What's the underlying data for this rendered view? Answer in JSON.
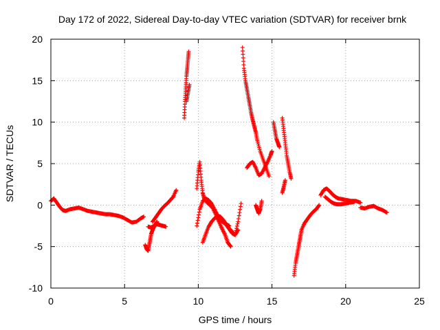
{
  "chart_data": {
    "type": "scatter",
    "title": "Day 172 of 2022, Sidereal Day-to-day VTEC variation (SDTVAR) for receiver brnk",
    "xlabel": "GPS time / hours",
    "ylabel": "SDTVAR / TECUs",
    "xlim": [
      0,
      25
    ],
    "ylim": [
      -10,
      20
    ],
    "xticks": [
      0,
      5,
      10,
      15,
      20,
      25
    ],
    "yticks": [
      -10,
      -5,
      0,
      5,
      10,
      15,
      20
    ],
    "grid": true,
    "marker": "+",
    "color": "#ff0000",
    "series": [
      {
        "name": "SDTVAR",
        "segments": [
          {
            "x": [
              0.0,
              0.2,
              0.4,
              0.6,
              0.8,
              1.0,
              1.3,
              1.6,
              1.9,
              2.2,
              2.5,
              2.8,
              3.1,
              3.4,
              3.7,
              4.0,
              4.3,
              4.6,
              4.9,
              5.2,
              5.5,
              5.8,
              6.1,
              6.3
            ],
            "y": [
              0.5,
              0.8,
              0.3,
              -0.2,
              -0.6,
              -0.7,
              -0.5,
              -0.4,
              -0.3,
              -0.5,
              -0.7,
              -0.8,
              -0.9,
              -1.0,
              -1.1,
              -1.1,
              -1.2,
              -1.3,
              -1.5,
              -1.8,
              -2.1,
              -2.0,
              -1.6,
              -1.4
            ]
          },
          {
            "x": [
              6.4,
              6.5,
              6.6,
              6.7,
              6.8,
              6.9,
              7.0,
              7.1,
              7.2
            ],
            "y": [
              -4.8,
              -5.3,
              -5.5,
              -4.5,
              -3.5,
              -3.0,
              -2.6,
              -2.3,
              -2.0
            ]
          },
          {
            "x": [
              6.9,
              7.1,
              7.3,
              7.5,
              7.7,
              7.9,
              8.1,
              8.3,
              8.5
            ],
            "y": [
              -2.0,
              -1.5,
              -1.0,
              -0.5,
              -0.1,
              0.2,
              0.6,
              1.0,
              1.8
            ]
          },
          {
            "x": [
              6.6,
              6.8,
              7.0,
              7.2,
              7.4,
              7.6,
              7.8
            ],
            "y": [
              -2.6,
              -2.7,
              -2.5,
              -2.3,
              -2.4,
              -2.5,
              -2.6
            ]
          },
          {
            "x": [
              9.05,
              9.1,
              9.15,
              9.2,
              9.25,
              9.3,
              9.35
            ],
            "y": [
              10.5,
              12.5,
              14.0,
              15.5,
              16.5,
              17.5,
              18.5
            ]
          },
          {
            "x": [
              9.2,
              9.3,
              9.4
            ],
            "y": [
              12.5,
              13.5,
              14.5
            ]
          },
          {
            "x": [
              9.9,
              10.0,
              10.1,
              10.2,
              10.3,
              10.4,
              10.6,
              10.8,
              11.0,
              11.2,
              11.4,
              11.6,
              11.8,
              12.0,
              12.2
            ],
            "y": [
              2.0,
              4.0,
              5.2,
              3.0,
              1.5,
              0.8,
              0.3,
              0.0,
              -0.4,
              -1.2,
              -2.0,
              -2.8,
              -3.5,
              -4.5,
              -5.0
            ]
          },
          {
            "x": [
              9.9,
              10.1,
              10.3,
              10.5,
              10.7,
              10.9,
              11.1,
              11.3,
              11.5,
              11.7,
              11.9,
              12.1
            ],
            "y": [
              -2.5,
              -0.5,
              0.5,
              0.8,
              0.6,
              0.2,
              -0.5,
              -1.2,
              -1.8,
              -2.1,
              -2.3,
              -2.5
            ]
          },
          {
            "x": [
              10.3,
              10.5,
              10.7,
              10.9,
              11.1,
              11.3,
              11.5,
              11.7,
              11.9,
              12.1,
              12.3,
              12.5,
              12.7,
              12.9
            ],
            "y": [
              -4.5,
              -3.5,
              -2.6,
              -2.0,
              -1.6,
              -1.3,
              -1.4,
              -1.8,
              -2.3,
              -2.8,
              -3.2,
              -3.6,
              -2.0,
              0.2
            ]
          },
          {
            "x": [
              11.5,
              11.7,
              11.9,
              12.1,
              12.3,
              12.5,
              12.7
            ],
            "y": [
              -1.5,
              -1.9,
              -2.4,
              -2.9,
              -3.4,
              -3.6,
              -3.0
            ]
          },
          {
            "x": [
              13.0,
              13.1,
              13.2,
              13.3,
              13.4,
              13.5,
              13.6,
              13.7,
              13.8,
              13.9,
              14.0,
              14.2,
              14.4,
              14.6,
              14.8
            ],
            "y": [
              19.0,
              16.5,
              15.0,
              14.0,
              13.0,
              12.0,
              11.0,
              10.2,
              9.5,
              8.8,
              7.8,
              6.5,
              5.5,
              4.5,
              3.5
            ]
          },
          {
            "x": [
              13.3,
              13.5,
              13.7,
              13.9,
              14.1,
              14.3,
              14.5,
              14.7,
              14.9,
              15.0
            ],
            "y": [
              4.5,
              5.0,
              5.2,
              4.5,
              3.6,
              3.8,
              4.5,
              5.2,
              6.0,
              6.5
            ]
          },
          {
            "x": [
              13.9,
              14.0,
              14.1,
              14.2,
              14.3
            ],
            "y": [
              0.0,
              -0.5,
              -1.0,
              -0.5,
              0.5
            ]
          },
          {
            "x": [
              15.1,
              15.2,
              15.3,
              15.4,
              15.5
            ],
            "y": [
              10.0,
              9.0,
              8.0,
              7.5,
              7.0
            ]
          },
          {
            "x": [
              15.7,
              15.8,
              15.9,
              16.0,
              16.1,
              16.2,
              16.3
            ],
            "y": [
              10.5,
              9.0,
              7.5,
              6.0,
              5.0,
              4.0,
              3.2
            ]
          },
          {
            "x": [
              15.7,
              15.8,
              15.9
            ],
            "y": [
              1.5,
              2.2,
              3.0
            ]
          },
          {
            "x": [
              16.5,
              16.6,
              16.7,
              16.8,
              16.9,
              17.0,
              17.2,
              17.4,
              17.6,
              17.8,
              18.0,
              18.2
            ],
            "y": [
              -8.5,
              -7.0,
              -6.0,
              -5.0,
              -4.0,
              -3.0,
              -2.2,
              -1.7,
              -1.2,
              -0.8,
              -0.5,
              0.0
            ]
          },
          {
            "x": [
              18.3,
              18.5,
              18.7,
              18.9,
              19.1,
              19.3,
              19.5,
              19.8,
              20.1,
              20.4,
              20.7,
              21.0
            ],
            "y": [
              1.2,
              1.8,
              2.0,
              1.7,
              1.3,
              1.0,
              0.8,
              0.7,
              0.6,
              0.5,
              0.5,
              0.3
            ]
          },
          {
            "x": [
              18.6,
              18.8,
              19.0,
              19.2,
              19.4,
              19.7,
              20.0,
              20.3,
              20.6
            ],
            "y": [
              1.0,
              0.7,
              0.4,
              0.2,
              0.1,
              0.1,
              0.2,
              0.3,
              0.4
            ]
          },
          {
            "x": [
              21.0,
              21.3,
              21.6,
              21.9,
              22.2,
              22.5,
              22.8
            ],
            "y": [
              -0.3,
              -0.4,
              -0.2,
              -0.1,
              -0.4,
              -0.6,
              -0.9
            ]
          }
        ]
      }
    ]
  }
}
